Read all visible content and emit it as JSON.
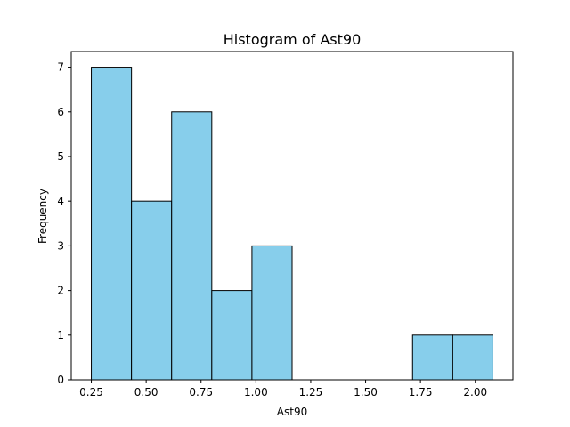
{
  "chart_data": {
    "type": "bar",
    "title": "Histogram of Ast90",
    "xlabel": "Ast90",
    "ylabel": "Frequency",
    "bins": [
      {
        "start": 0.25,
        "end": 0.433,
        "count": 7
      },
      {
        "start": 0.433,
        "end": 0.616,
        "count": 4
      },
      {
        "start": 0.616,
        "end": 0.799,
        "count": 6
      },
      {
        "start": 0.799,
        "end": 0.982,
        "count": 2
      },
      {
        "start": 0.982,
        "end": 1.165,
        "count": 3
      },
      {
        "start": 1.165,
        "end": 1.348,
        "count": 0
      },
      {
        "start": 1.348,
        "end": 1.531,
        "count": 0
      },
      {
        "start": 1.531,
        "end": 1.714,
        "count": 0
      },
      {
        "start": 1.714,
        "end": 1.897,
        "count": 1
      },
      {
        "start": 1.897,
        "end": 2.08,
        "count": 1
      }
    ],
    "xlim": [
      0.1585,
      2.1715
    ],
    "ylim": [
      0,
      7.35
    ],
    "xticks": [
      "0.25",
      "0.50",
      "0.75",
      "1.00",
      "1.25",
      "1.50",
      "1.75",
      "2.00"
    ],
    "yticks": [
      "0",
      "1",
      "2",
      "3",
      "4",
      "5",
      "6",
      "7"
    ],
    "grid": false,
    "bar_color": "#87CEEB",
    "edge_color": "#000000"
  }
}
